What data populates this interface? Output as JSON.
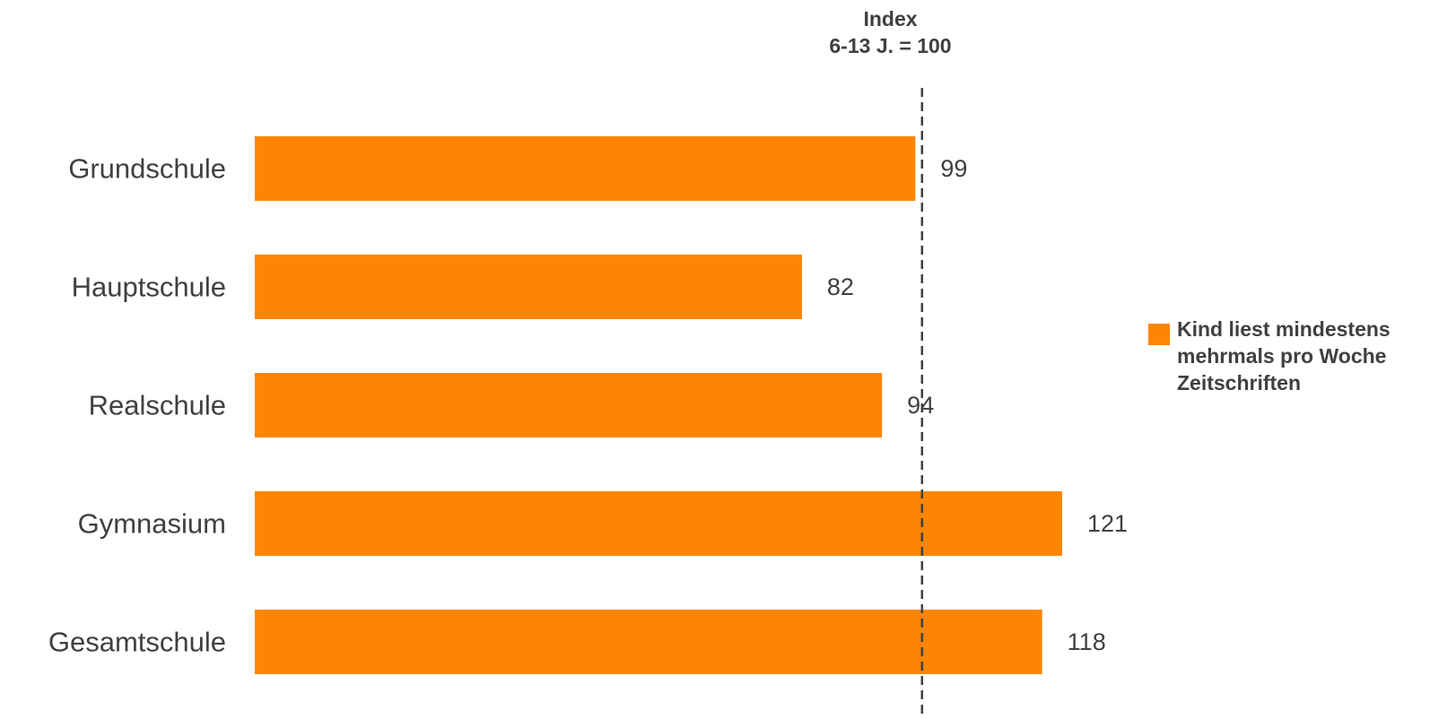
{
  "chart_data": {
    "type": "bar",
    "orientation": "horizontal",
    "categories": [
      "Grundschule",
      "Hauptschule",
      "Realschule",
      "Gymnasium",
      "Gesamtschule"
    ],
    "series": [
      {
        "name": "Kind liest mindestens mehrmals pro Woche Zeitschriften",
        "values": [
          99,
          82,
          94,
          121,
          118
        ],
        "color": "#fd8504"
      }
    ],
    "reference_line": {
      "value": 100,
      "label_line1": "Index",
      "label_line2": "6-13 J. = 100",
      "style": "dashed"
    },
    "xlim": [
      0,
      121
    ],
    "grid": false,
    "legend_position": "right",
    "colors": {
      "bar": "#fd8504",
      "text": "#404040",
      "reference": "#404040"
    }
  }
}
